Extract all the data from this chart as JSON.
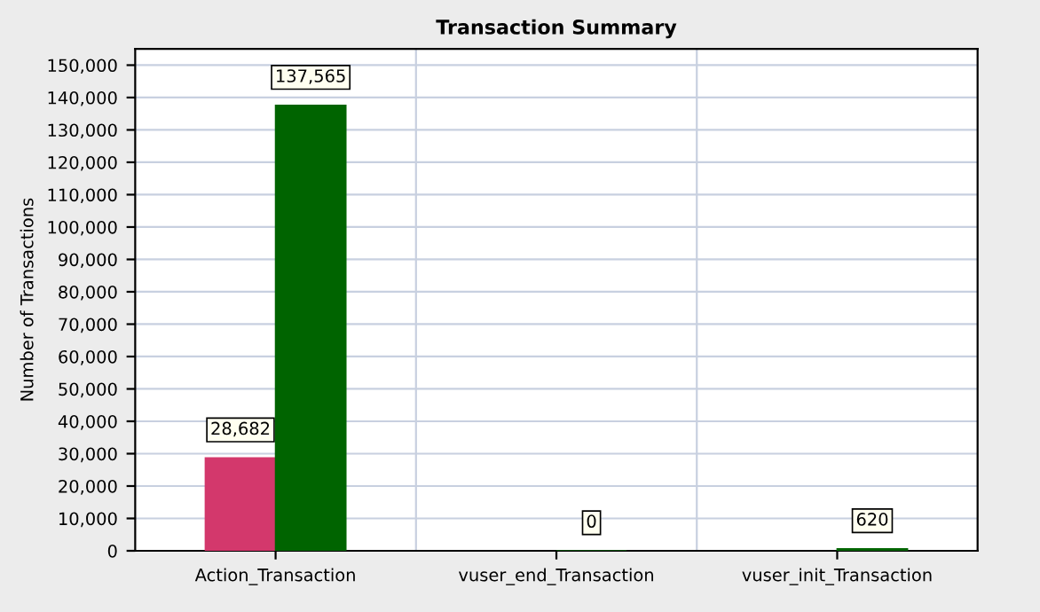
{
  "chart_data": {
    "type": "bar",
    "title": "Transaction Summary",
    "ylabel": "Number of Transactions",
    "categories": [
      "Action_Transaction",
      "vuser_end_Transaction",
      "vuser_init_Transaction"
    ],
    "series": [
      {
        "color": "#d3386c",
        "values": [
          28682,
          null,
          null
        ],
        "value_labels": [
          "28,682",
          null,
          null
        ]
      },
      {
        "color": "#006400",
        "values": [
          137565,
          0,
          620
        ],
        "value_labels": [
          "137,565",
          "0",
          "620"
        ]
      }
    ],
    "ylim": [
      0,
      155000
    ],
    "yticks": [
      {
        "value": 0,
        "label": "0"
      },
      {
        "value": 10000,
        "label": "10,000"
      },
      {
        "value": 20000,
        "label": "20,000"
      },
      {
        "value": 30000,
        "label": "30,000"
      },
      {
        "value": 40000,
        "label": "40,000"
      },
      {
        "value": 50000,
        "label": "50,000"
      },
      {
        "value": 60000,
        "label": "60,000"
      },
      {
        "value": 70000,
        "label": "70,000"
      },
      {
        "value": 80000,
        "label": "80,000"
      },
      {
        "value": 90000,
        "label": "90,000"
      },
      {
        "value": 100000,
        "label": "100,000"
      },
      {
        "value": 110000,
        "label": "110,000"
      },
      {
        "value": 120000,
        "label": "120,000"
      },
      {
        "value": 130000,
        "label": "130,000"
      },
      {
        "value": 140000,
        "label": "140,000"
      },
      {
        "value": 150000,
        "label": "150,000"
      }
    ],
    "grid": true,
    "legend": false
  }
}
